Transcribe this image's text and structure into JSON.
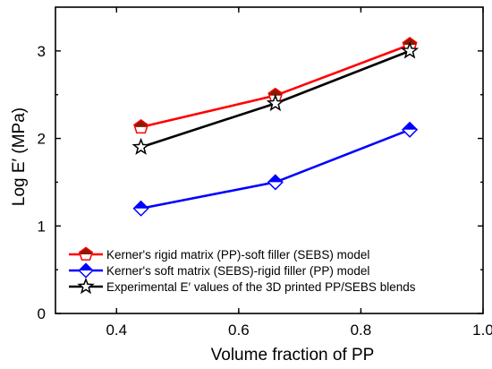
{
  "chart_data": {
    "type": "line",
    "xlabel": "Volume fraction of PP",
    "ylabel": "Log E′ (MPa)",
    "xlim": [
      0.3,
      1.0
    ],
    "ylim": [
      0,
      3.5
    ],
    "xticks": [
      0.4,
      0.6,
      0.8,
      1.0
    ],
    "xtick_labels": [
      "0.4",
      "0.6",
      "0.8",
      "1.0"
    ],
    "yticks": [
      0,
      1,
      2,
      3
    ],
    "ytick_labels": [
      "0",
      "1",
      "2",
      "3"
    ],
    "grid": false,
    "legend_position": "bottom-left",
    "series": [
      {
        "name": "Kerner's rigid matrix (PP)-soft filler (SEBS) model",
        "marker": "pentagon-half",
        "color": "#ff0000",
        "marker_fill": "#8b1a00",
        "x": [
          0.44,
          0.66,
          0.88
        ],
        "y": [
          2.13,
          2.49,
          3.07
        ]
      },
      {
        "name": "Kerner's soft matrix (SEBS)-rigid filler (PP) model",
        "marker": "diamond-half",
        "color": "#0000ff",
        "marker_fill": "#0000ff",
        "x": [
          0.44,
          0.66,
          0.88
        ],
        "y": [
          1.2,
          1.5,
          2.1
        ]
      },
      {
        "name": "Experimental E′ values of the 3D printed PP/SEBS blends",
        "marker": "star-open",
        "color": "#000000",
        "marker_fill": "#ffffff",
        "x": [
          0.44,
          0.66,
          0.88
        ],
        "y": [
          1.9,
          2.4,
          3.0
        ]
      }
    ]
  }
}
